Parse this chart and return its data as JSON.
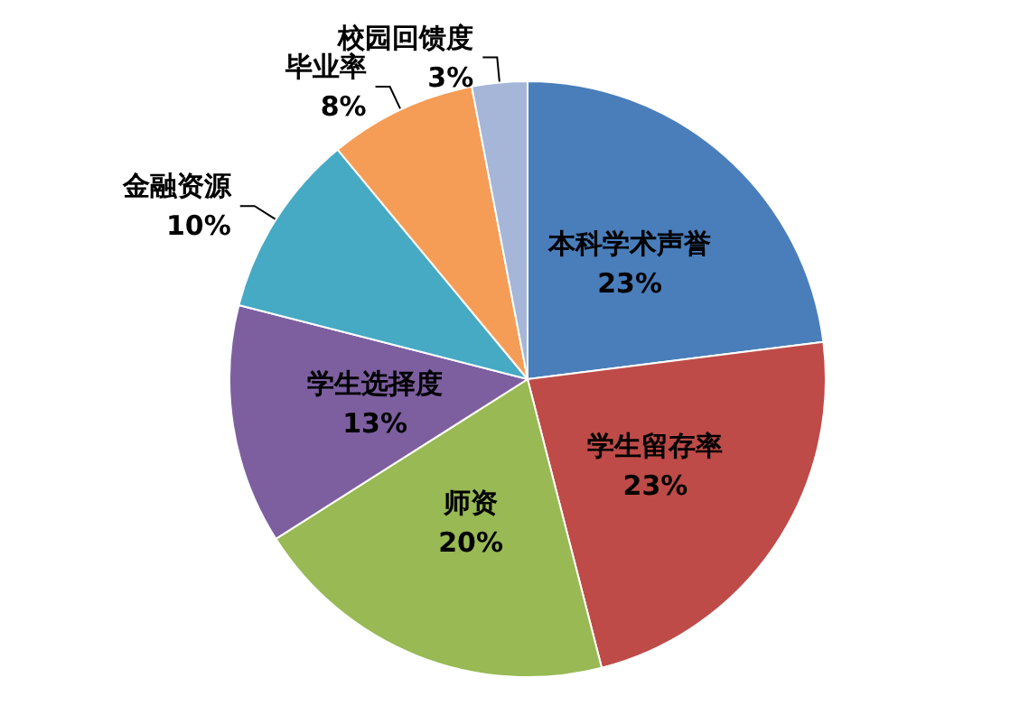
{
  "chart_data": {
    "type": "pie",
    "categories": [
      "本科学术声誉",
      "学生留存率",
      "师资",
      "学生选择度",
      "金融资源",
      "毕业率",
      "校园回馈度"
    ],
    "values": [
      23,
      23,
      20,
      13,
      10,
      8,
      3
    ],
    "value_labels": [
      "23%",
      "23%",
      "20%",
      "13%",
      "10%",
      "8%",
      "3%"
    ],
    "colors": [
      "#4a7ebb",
      "#be4b48",
      "#98b954",
      "#7d5fa0",
      "#46aac4",
      "#f59d56",
      "#a5b6d8"
    ],
    "legend": false
  }
}
